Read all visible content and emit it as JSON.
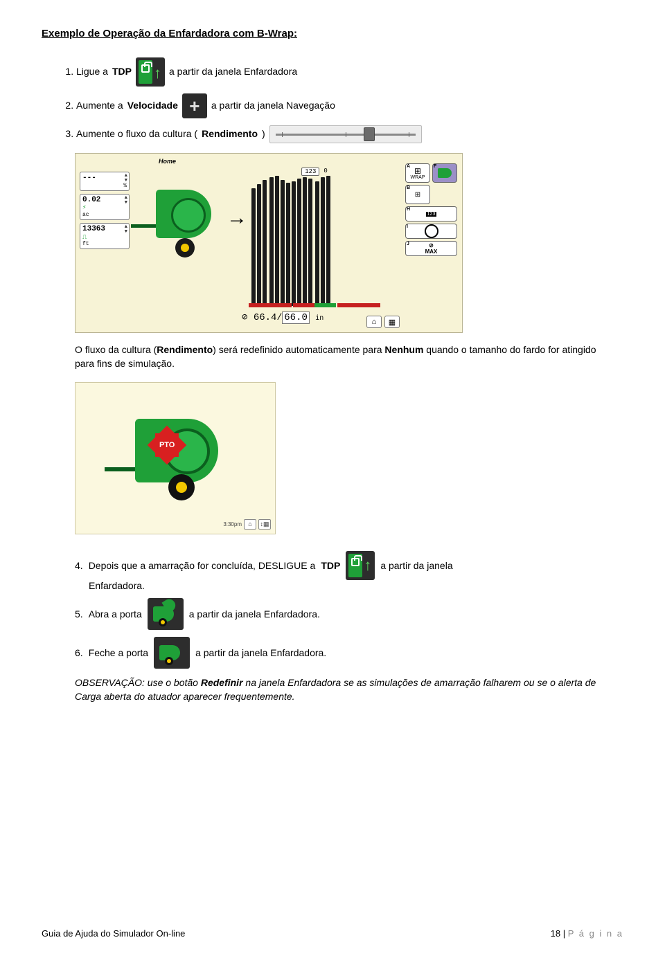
{
  "title": "Exemplo de Operação da Enfardadora com B-Wrap:",
  "steps": {
    "s1a": "Ligue a ",
    "s1_tdp": "TDP",
    "s1b": " a partir da janela Enfardadora",
    "s2a": "Aumente a ",
    "s2_vel": "Velocidade",
    "s2b": " a partir da janela Navegação",
    "s3a": "Aumente o fluxo da cultura (",
    "s3_rend": "Rendimento",
    "s3b": ")",
    "s4a": "Depois que a amarração for concluída, DESLIGUE a ",
    "s4_tdp": "TDP",
    "s4b": " a partir da janela",
    "s4c": "Enfardadora.",
    "s5a": "Abra a porta ",
    "s5b": " a partir da janela Enfardadora.",
    "s6a": "Feche a porta ",
    "s6b": " a partir da janela Enfardadora."
  },
  "body_text_a": "O fluxo da cultura (",
  "body_text_bold": "Rendimento",
  "body_text_b": ") será redefinido automaticamente para ",
  "body_text_bold2": "Nenhum",
  "body_text_c": " quando o tamanho do fardo for atingido para fins de simulação.",
  "obs_a": "OBSERVAÇÃO: use o botão ",
  "obs_bold": "Redefinir",
  "obs_b": " na janela Enfardadora se as simulações de amarração falharem ou se o alerta de Carga aberta do atuador aparecer frequentemente.",
  "screen": {
    "home_label": "Home",
    "metrics": {
      "m1_val": "---",
      "m1_sub": "%",
      "m2_val": "0.02",
      "m2_sub": "ac",
      "m3_val": "13363",
      "m3_sub": "ft"
    },
    "counter_box": "123",
    "counter_num": "0",
    "readout_main": "66.4",
    "readout_den": "66.0",
    "readout_unit": "in",
    "right_buttons": {
      "wrap": "WRAP",
      "max": "MAX"
    },
    "corners": {
      "a": "A",
      "b": "B",
      "f": "F",
      "g": "G",
      "h": "H",
      "i": "I",
      "j": "J"
    },
    "bars": [
      [
        170,
        176,
        182
      ],
      [
        186,
        188,
        182,
        178,
        180,
        184,
        186,
        184
      ],
      [
        180,
        186,
        188
      ]
    ],
    "bar_color": "#1b1b1b",
    "base_colors": {
      "red": "#c62020",
      "green": "#1fa038"
    }
  },
  "sim": {
    "pto_label": "PTO",
    "time": "3:30pm"
  },
  "slider": {
    "pos_pct": 62,
    "ticks_pct": [
      8,
      50,
      92
    ]
  },
  "colors": {
    "jd_green": "#1fa038",
    "jd_dark": "#0b5f1e",
    "jd_yellow": "#f2c700",
    "panel_bg": "#f7f3d6",
    "dark_btn": "#2d2d2d"
  },
  "footer": {
    "left": "Guia de Ajuda do Simulador On-line",
    "page_num": "18 | ",
    "page_word": "P á g i n a"
  }
}
